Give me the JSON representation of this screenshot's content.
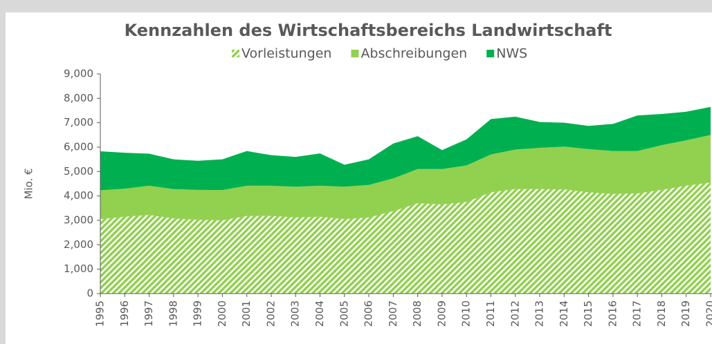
{
  "chart_data": {
    "type": "stacked-area",
    "title": "Kennzahlen des Wirtschaftsbereichs Landwirtschaft",
    "y_label": "Mio. €",
    "categories": [
      "1995",
      "1996",
      "1997",
      "1998",
      "1999",
      "2000",
      "2001",
      "2002",
      "2003",
      "2004",
      "2005",
      "2006",
      "2007",
      "2008",
      "2009",
      "2010",
      "2011",
      "2012",
      "2013",
      "2014",
      "2015",
      "2016",
      "2017",
      "2018",
      "2019",
      "2020"
    ],
    "series": [
      {
        "name": "Vorleistungen",
        "color": "#92d050",
        "pattern": "hatch",
        "values": [
          3050,
          3150,
          3220,
          3080,
          3020,
          3000,
          3180,
          3180,
          3120,
          3150,
          3050,
          3120,
          3380,
          3700,
          3650,
          3750,
          4150,
          4280,
          4280,
          4270,
          4150,
          4080,
          4100,
          4250,
          4420,
          4550
        ]
      },
      {
        "name": "Abschreibungen",
        "color": "#92d050",
        "values": [
          1180,
          1150,
          1200,
          1200,
          1230,
          1240,
          1240,
          1240,
          1260,
          1270,
          1330,
          1330,
          1340,
          1400,
          1450,
          1500,
          1550,
          1620,
          1690,
          1750,
          1770,
          1760,
          1740,
          1830,
          1860,
          1950
        ]
      },
      {
        "name": "NWS",
        "color": "#00b050",
        "values": [
          1600,
          1470,
          1310,
          1220,
          1190,
          1260,
          1420,
          1250,
          1220,
          1320,
          900,
          1050,
          1430,
          1350,
          780,
          1070,
          1450,
          1350,
          1060,
          980,
          950,
          1110,
          1460,
          1280,
          1170,
          1150
        ]
      }
    ],
    "ylim": [
      0,
      9000
    ],
    "yticks": [
      0,
      {
        "value": 1000,
        "label": "1,000"
      },
      {
        "value": 2000,
        "label": "2,000"
      },
      {
        "value": 3000,
        "label": "3,000"
      },
      {
        "value": 4000,
        "label": "4,000"
      },
      {
        "value": 5000,
        "label": "5,000"
      },
      {
        "value": 6000,
        "label": "6,000"
      },
      {
        "value": 7000,
        "label": "7,000"
      },
      {
        "value": 8000,
        "label": "8,000"
      },
      {
        "value": 9000,
        "label": "9,000"
      }
    ],
    "legend": "top"
  }
}
